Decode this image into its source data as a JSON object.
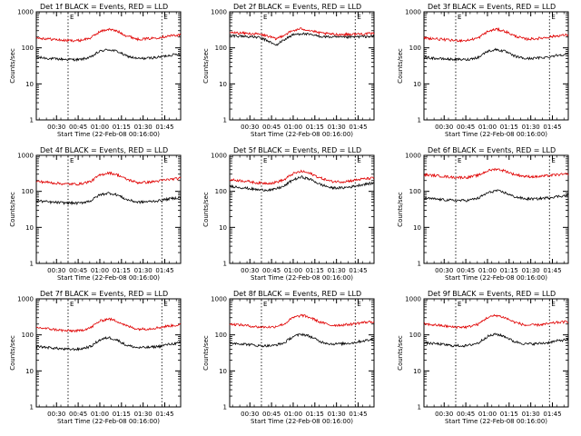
{
  "figure": {
    "common": {
      "ylabel": "Counts/sec",
      "xlabel": "Start Time (22-Feb-08 00:16:00)",
      "x_tick_labels": [
        "00:30",
        "00:45",
        "01:00",
        "01:15",
        "01:30",
        "01:45"
      ],
      "y_tick_labels": [
        "1",
        "10",
        "100",
        "1000"
      ],
      "marker_label": "E"
    }
  },
  "chart_data": [
    {
      "type": "line",
      "title": "Det 1f BLACK = Events, RED = LLD",
      "xlabel": "Start Time (22-Feb-08 00:16:00)",
      "ylabel": "Counts/sec",
      "y_scale": "log",
      "ylim": [
        1,
        1000
      ],
      "x_range_minutes": [
        0,
        100
      ],
      "x_ticks_minutes": [
        14,
        29,
        44,
        59,
        74,
        89
      ],
      "vertical_marker_lines_minutes": [
        22,
        87
      ],
      "marker_labels": [
        "E",
        "E"
      ],
      "series": [
        {
          "name": "BLACK = Events",
          "color": "#000000",
          "x": [
            0,
            10,
            20,
            30,
            38,
            44,
            50,
            56,
            62,
            70,
            78,
            85,
            92,
            100
          ],
          "values": [
            55,
            50,
            48,
            47,
            55,
            80,
            90,
            80,
            60,
            50,
            52,
            55,
            62,
            68
          ]
        },
        {
          "name": "RED = LLD",
          "color": "#e00000",
          "x": [
            0,
            10,
            20,
            30,
            38,
            44,
            50,
            56,
            62,
            70,
            78,
            85,
            92,
            100
          ],
          "values": [
            190,
            175,
            160,
            160,
            190,
            280,
            330,
            290,
            220,
            175,
            180,
            195,
            215,
            230
          ]
        }
      ]
    },
    {
      "type": "line",
      "title": "Det 2f BLACK = Events, RED = LLD",
      "xlabel": "Start Time (22-Feb-08 00:16:00)",
      "ylabel": "Counts/sec",
      "y_scale": "log",
      "ylim": [
        1,
        1000
      ],
      "x_range_minutes": [
        0,
        100
      ],
      "x_ticks_minutes": [
        14,
        29,
        44,
        59,
        74,
        89
      ],
      "vertical_marker_lines_minutes": [
        22,
        87
      ],
      "marker_labels": [
        "E",
        "E"
      ],
      "series": [
        {
          "name": "BLACK = Events",
          "color": "#000000",
          "x": [
            0,
            10,
            20,
            26,
            32,
            38,
            44,
            50,
            56,
            62,
            70,
            78,
            85,
            92,
            100
          ],
          "values": [
            220,
            210,
            195,
            160,
            115,
            170,
            230,
            250,
            230,
            210,
            200,
            195,
            200,
            205,
            210
          ]
        },
        {
          "name": "RED = LLD",
          "color": "#e00000",
          "x": [
            0,
            10,
            20,
            26,
            32,
            38,
            44,
            50,
            56,
            62,
            70,
            78,
            85,
            92,
            100
          ],
          "values": [
            265,
            255,
            240,
            215,
            175,
            230,
            300,
            340,
            300,
            260,
            240,
            235,
            240,
            245,
            250
          ]
        }
      ]
    },
    {
      "type": "line",
      "title": "Det 3f BLACK = Events, RED = LLD",
      "xlabel": "Start Time (22-Feb-08 00:16:00)",
      "ylabel": "Counts/sec",
      "y_scale": "log",
      "ylim": [
        1,
        1000
      ],
      "x_range_minutes": [
        0,
        100
      ],
      "x_ticks_minutes": [
        14,
        29,
        44,
        59,
        74,
        89
      ],
      "vertical_marker_lines_minutes": [
        22,
        87
      ],
      "marker_labels": [
        "E",
        "E"
      ],
      "series": [
        {
          "name": "BLACK = Events",
          "color": "#000000",
          "x": [
            0,
            10,
            20,
            30,
            38,
            44,
            50,
            56,
            62,
            70,
            78,
            85,
            92,
            100
          ],
          "values": [
            55,
            50,
            48,
            47,
            55,
            80,
            90,
            80,
            60,
            50,
            52,
            55,
            62,
            68
          ]
        },
        {
          "name": "RED = LLD",
          "color": "#e00000",
          "x": [
            0,
            10,
            20,
            30,
            38,
            44,
            50,
            56,
            62,
            70,
            78,
            85,
            92,
            100
          ],
          "values": [
            190,
            175,
            160,
            160,
            190,
            280,
            330,
            290,
            220,
            175,
            180,
            195,
            215,
            230
          ]
        }
      ]
    },
    {
      "type": "line",
      "title": "Det 4f BLACK = Events, RED = LLD",
      "xlabel": "Start Time (22-Feb-08 00:16:00)",
      "ylabel": "Counts/sec",
      "y_scale": "log",
      "ylim": [
        1,
        1000
      ],
      "x_range_minutes": [
        0,
        100
      ],
      "x_ticks_minutes": [
        14,
        29,
        44,
        59,
        74,
        89
      ],
      "vertical_marker_lines_minutes": [
        22,
        87
      ],
      "marker_labels": [
        "E",
        "E"
      ],
      "series": [
        {
          "name": "BLACK = Events",
          "color": "#000000",
          "x": [
            0,
            10,
            20,
            30,
            38,
            44,
            50,
            56,
            62,
            70,
            78,
            85,
            92,
            100
          ],
          "values": [
            55,
            50,
            48,
            47,
            55,
            80,
            90,
            80,
            60,
            50,
            52,
            55,
            62,
            68
          ]
        },
        {
          "name": "RED = LLD",
          "color": "#e00000",
          "x": [
            0,
            10,
            20,
            30,
            38,
            44,
            50,
            56,
            62,
            70,
            78,
            85,
            92,
            100
          ],
          "values": [
            190,
            175,
            160,
            160,
            190,
            280,
            330,
            290,
            220,
            175,
            180,
            195,
            215,
            230
          ]
        }
      ]
    },
    {
      "type": "line",
      "title": "Det 5f BLACK = Events, RED = LLD",
      "xlabel": "Start Time (22-Feb-08 00:16:00)",
      "ylabel": "Counts/sec",
      "y_scale": "log",
      "ylim": [
        1,
        1000
      ],
      "x_range_minutes": [
        0,
        100
      ],
      "x_ticks_minutes": [
        14,
        29,
        44,
        59,
        74,
        89
      ],
      "vertical_marker_lines_minutes": [
        22,
        87
      ],
      "marker_labels": [
        "E",
        "E"
      ],
      "series": [
        {
          "name": "BLACK = Events",
          "color": "#000000",
          "x": [
            0,
            10,
            20,
            30,
            38,
            44,
            50,
            56,
            62,
            70,
            78,
            85,
            92,
            100
          ],
          "values": [
            140,
            125,
            110,
            110,
            140,
            210,
            250,
            215,
            160,
            125,
            125,
            135,
            155,
            170
          ]
        },
        {
          "name": "RED = LLD",
          "color": "#e00000",
          "x": [
            0,
            10,
            20,
            30,
            38,
            44,
            50,
            56,
            62,
            70,
            78,
            85,
            92,
            100
          ],
          "values": [
            210,
            195,
            170,
            170,
            210,
            310,
            360,
            310,
            240,
            190,
            185,
            200,
            220,
            235
          ]
        }
      ]
    },
    {
      "type": "line",
      "title": "Det 6f BLACK = Events, RED = LLD",
      "xlabel": "Start Time (22-Feb-08 00:16:00)",
      "ylabel": "Counts/sec",
      "y_scale": "log",
      "ylim": [
        1,
        1000
      ],
      "x_range_minutes": [
        0,
        100
      ],
      "x_ticks_minutes": [
        14,
        29,
        44,
        59,
        74,
        89
      ],
      "vertical_marker_lines_minutes": [
        22,
        87
      ],
      "marker_labels": [
        "E",
        "E"
      ],
      "series": [
        {
          "name": "BLACK = Events",
          "color": "#000000",
          "x": [
            0,
            10,
            20,
            30,
            38,
            44,
            50,
            56,
            62,
            70,
            78,
            85,
            92,
            100
          ],
          "values": [
            65,
            60,
            56,
            56,
            65,
            90,
            105,
            92,
            72,
            62,
            62,
            66,
            72,
            78
          ]
        },
        {
          "name": "RED = LLD",
          "color": "#e00000",
          "x": [
            0,
            10,
            20,
            30,
            38,
            44,
            50,
            56,
            62,
            70,
            78,
            85,
            92,
            100
          ],
          "values": [
            290,
            270,
            245,
            245,
            280,
            370,
            420,
            370,
            300,
            260,
            255,
            270,
            290,
            300
          ]
        }
      ]
    },
    {
      "type": "line",
      "title": "Det 7f BLACK = Events, RED = LLD",
      "xlabel": "Start Time (22-Feb-08 00:16:00)",
      "ylabel": "Counts/sec",
      "y_scale": "log",
      "ylim": [
        1,
        1000
      ],
      "x_range_minutes": [
        0,
        100
      ],
      "x_ticks_minutes": [
        14,
        29,
        44,
        59,
        74,
        89
      ],
      "vertical_marker_lines_minutes": [
        22,
        87
      ],
      "marker_labels": [
        "E",
        "E"
      ],
      "series": [
        {
          "name": "BLACK = Events",
          "color": "#000000",
          "x": [
            0,
            10,
            20,
            30,
            38,
            44,
            50,
            56,
            62,
            70,
            78,
            85,
            92,
            100
          ],
          "values": [
            48,
            44,
            40,
            40,
            48,
            72,
            85,
            72,
            52,
            44,
            45,
            48,
            55,
            60
          ]
        },
        {
          "name": "RED = LLD",
          "color": "#e00000",
          "x": [
            0,
            10,
            20,
            30,
            38,
            44,
            50,
            56,
            62,
            70,
            78,
            85,
            92,
            100
          ],
          "values": [
            160,
            145,
            130,
            130,
            160,
            240,
            280,
            240,
            180,
            145,
            148,
            160,
            178,
            190
          ]
        }
      ]
    },
    {
      "type": "line",
      "title": "Det 8f BLACK = Events, RED = LLD",
      "xlabel": "Start Time (22-Feb-08 00:16:00)",
      "ylabel": "Counts/sec",
      "y_scale": "log",
      "ylim": [
        1,
        1000
      ],
      "x_range_minutes": [
        0,
        100
      ],
      "x_ticks_minutes": [
        14,
        29,
        44,
        59,
        74,
        89
      ],
      "vertical_marker_lines_minutes": [
        22,
        87
      ],
      "marker_labels": [
        "E",
        "E"
      ],
      "series": [
        {
          "name": "BLACK = Events",
          "color": "#000000",
          "x": [
            0,
            10,
            20,
            30,
            38,
            44,
            50,
            56,
            62,
            70,
            78,
            85,
            92,
            100
          ],
          "values": [
            60,
            56,
            50,
            50,
            60,
            90,
            105,
            90,
            66,
            56,
            57,
            60,
            68,
            75
          ]
        },
        {
          "name": "RED = LLD",
          "color": "#e00000",
          "x": [
            0,
            10,
            20,
            30,
            38,
            44,
            50,
            56,
            62,
            70,
            78,
            85,
            92,
            100
          ],
          "values": [
            200,
            185,
            165,
            165,
            200,
            300,
            350,
            300,
            230,
            185,
            188,
            200,
            220,
            235
          ]
        }
      ]
    },
    {
      "type": "line",
      "title": "Det 9f BLACK = Events, RED = LLD",
      "xlabel": "Start Time (22-Feb-08 00:16:00)",
      "ylabel": "Counts/sec",
      "y_scale": "log",
      "ylim": [
        1,
        1000
      ],
      "x_range_minutes": [
        0,
        100
      ],
      "x_ticks_minutes": [
        14,
        29,
        44,
        59,
        74,
        89
      ],
      "vertical_marker_lines_minutes": [
        22,
        87
      ],
      "marker_labels": [
        "E",
        "E"
      ],
      "series": [
        {
          "name": "BLACK = Events",
          "color": "#000000",
          "x": [
            0,
            10,
            20,
            30,
            38,
            44,
            50,
            56,
            62,
            70,
            78,
            85,
            92,
            100
          ],
          "values": [
            60,
            56,
            50,
            50,
            60,
            90,
            105,
            90,
            66,
            56,
            57,
            60,
            68,
            75
          ]
        },
        {
          "name": "RED = LLD",
          "color": "#e00000",
          "x": [
            0,
            10,
            20,
            30,
            38,
            44,
            50,
            56,
            62,
            70,
            78,
            85,
            92,
            100
          ],
          "values": [
            200,
            185,
            165,
            165,
            200,
            300,
            350,
            300,
            230,
            185,
            188,
            200,
            220,
            235
          ]
        }
      ]
    }
  ]
}
